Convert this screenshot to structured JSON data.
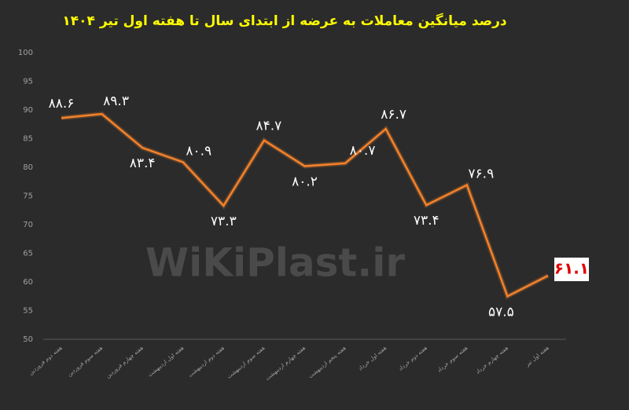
{
  "chart_data": {
    "type": "line",
    "title": "درصد میانگین معاملات به عرضه از ابتدای سال تا هفته اول تیر ۱۴۰۴",
    "watermark": "WiKiPlast.ir",
    "categories": [
      "هفته دوم فروردین",
      "هفته سوم فروردین",
      "هفته چهارم فروردین",
      "هفته اول اردیبهشت",
      "هفته دوم اردیبهشت",
      "هفته سوم اردیبهشت",
      "هفته چهارم اردیبهشت",
      "هفته پنجم اردیبهشت",
      "هفته اول خرداد",
      "هفته دوم خرداد",
      "هفته سوم خرداد",
      "هفته چهارم خرداد",
      "هفته اول تیر"
    ],
    "series": [
      {
        "color": "#f5822a",
        "values": [
          88.6,
          89.3,
          83.4,
          80.9,
          73.3,
          84.7,
          80.2,
          80.7,
          86.7,
          73.4,
          76.9,
          57.5,
          61.1
        ],
        "value_labels": [
          "۸۸.۶",
          "۸۹.۳",
          "۸۳.۴",
          "۸۰.۹",
          "۷۳.۳",
          "۸۴.۷",
          "۸۰.۲",
          "۸۰.۷",
          "۸۶.۷",
          "۷۳.۴",
          "۷۶.۹",
          "۵۷.۵",
          "۶۱.۱"
        ]
      }
    ],
    "ylim": [
      50,
      100
    ],
    "yticks": [
      50,
      55,
      60,
      65,
      70,
      75,
      80,
      85,
      90,
      95,
      100
    ],
    "grid": false
  }
}
